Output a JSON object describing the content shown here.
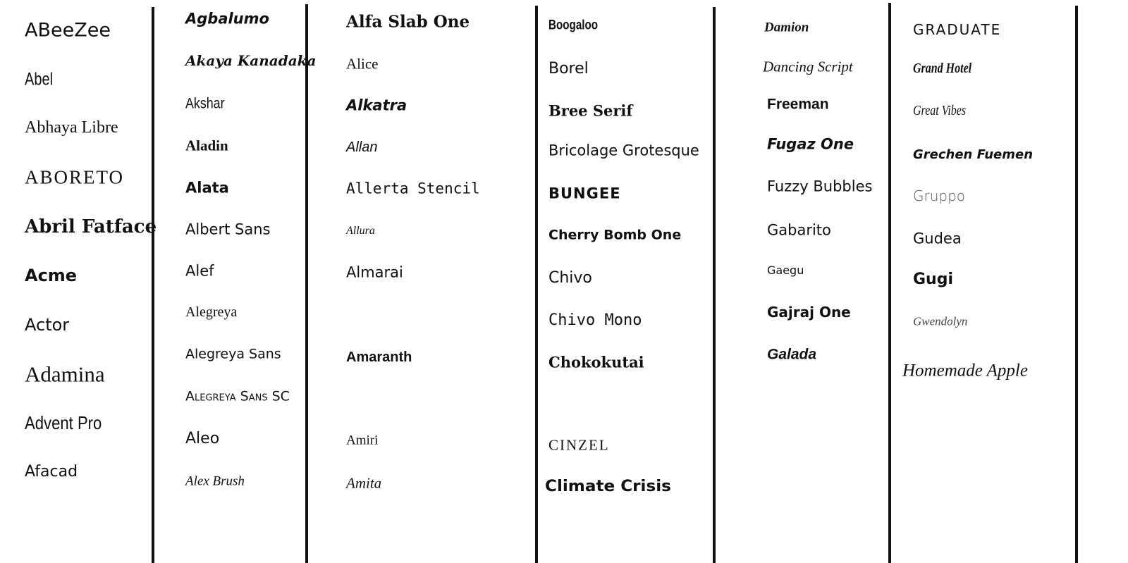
{
  "columns": [
    {
      "fonts": [
        "ABeeZee",
        "Abel",
        "Abhaya Libre",
        "ABORETO",
        "Abril Fatface",
        "Acme",
        "Actor",
        "Adamina",
        "Advent Pro",
        "Afacad"
      ]
    },
    {
      "fonts": [
        "Agbalumo",
        "Akaya Kanadaka",
        "Akshar",
        "Aladin",
        "Alata",
        "Albert Sans",
        "Alef",
        "Alegreya",
        "Alegreya Sans",
        "Alegreya Sans SC",
        "Aleo",
        "Alex Brush"
      ]
    },
    {
      "fonts": [
        "Alfa Slab One",
        "Alice",
        "Alkatra",
        "Allan",
        "Allerta Stencil",
        "Allura",
        "Almarai",
        "Amaranth",
        "Amiri",
        "Amita"
      ]
    },
    {
      "fonts": [
        "Boogaloo",
        "Borel",
        "Bree Serif",
        "Bricolage Grotesque",
        "BUNGEE",
        "Cherry Bomb One",
        "Chivo",
        "Chivo Mono",
        "Chokokutai",
        "CINZEL",
        "Climate Crisis"
      ]
    },
    {
      "fonts": [
        "Damion",
        "Dancing Script",
        "Freeman",
        "Fugaz One",
        "Fuzzy Bubbles",
        "Gabarito",
        "Gaegu",
        "Gajraj One",
        "Galada"
      ]
    },
    {
      "fonts": [
        "GRADUATE",
        "Grand Hotel",
        "Great Vibes",
        "Grechen Fuemen",
        "Gruppo",
        "Gudea",
        "Gugi",
        "Gwendolyn",
        "Homemade Apple"
      ]
    }
  ],
  "colors": {
    "text": "#111111",
    "divider": "#111111",
    "background": "#ffffff"
  }
}
